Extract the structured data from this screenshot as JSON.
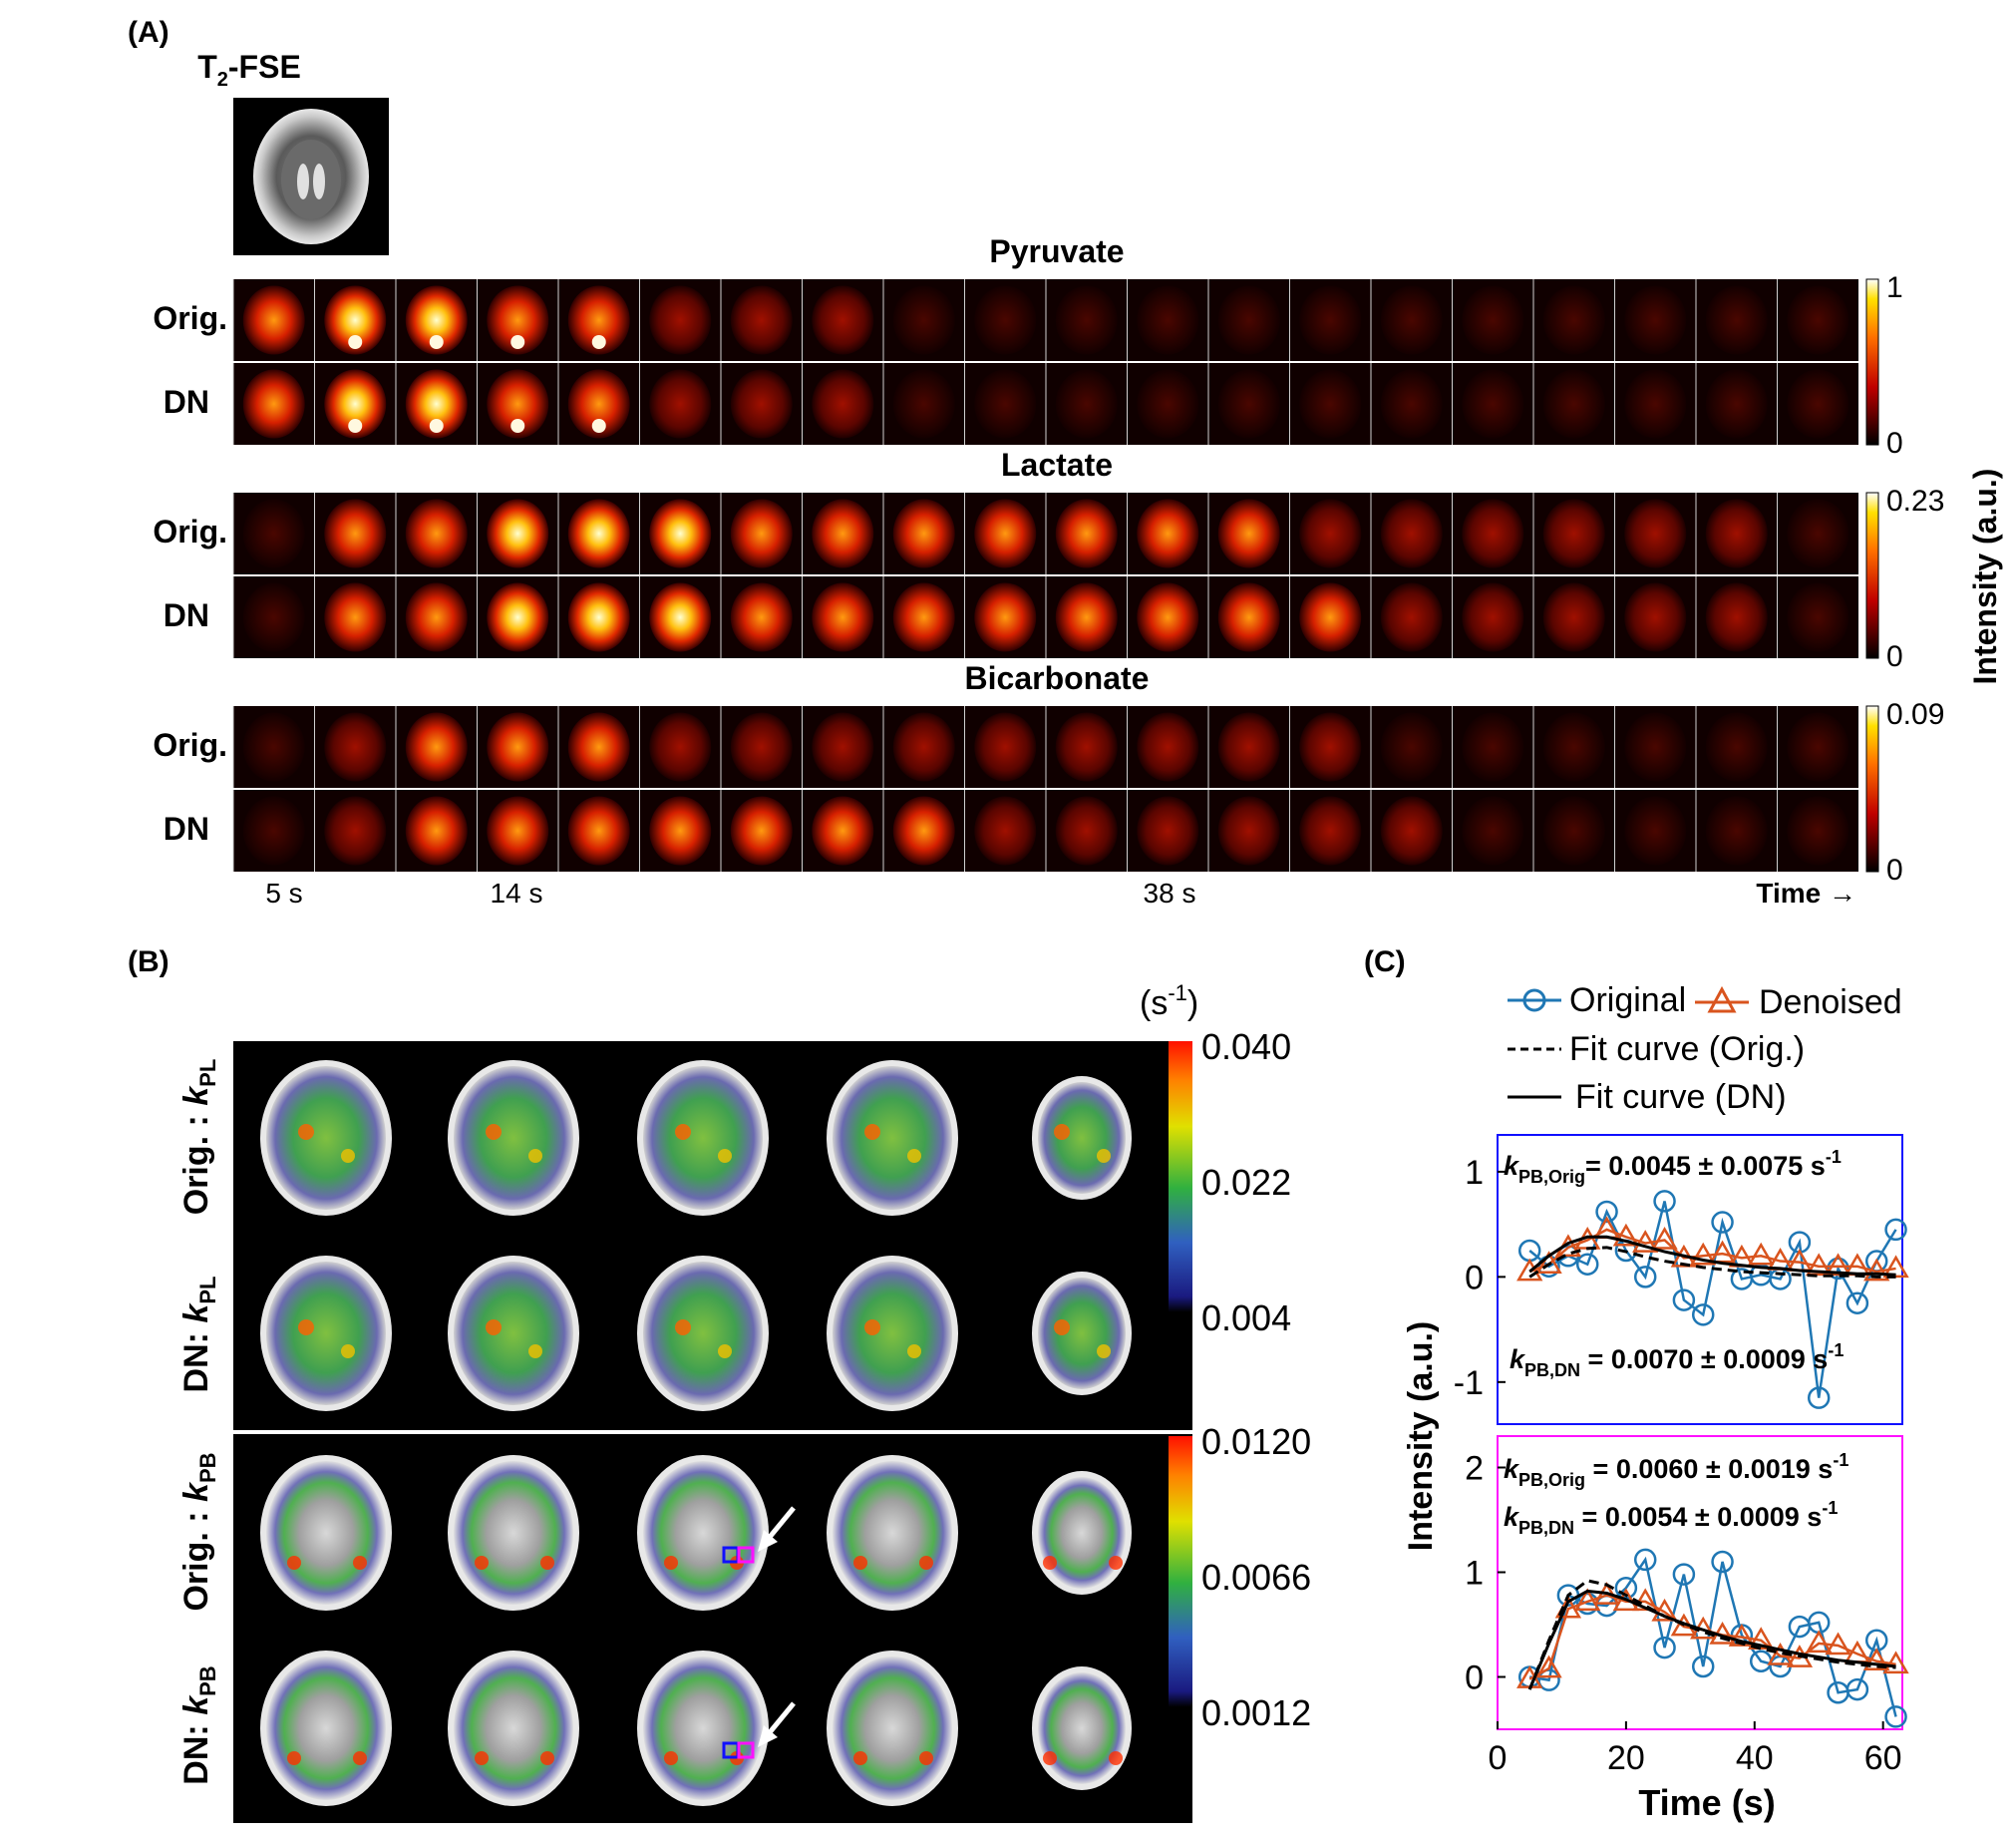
{
  "panel_a": {
    "label": "(A)",
    "t2_label": {
      "main": "T",
      "sub": "2",
      "rest": "-FSE"
    },
    "row_orig": "Orig.",
    "row_dn": "DN",
    "frames": 20,
    "groups": [
      {
        "title": "Pyruvate",
        "cb_max": "1",
        "cb_min": "0"
      },
      {
        "title": "Lactate",
        "cb_max": "0.23",
        "cb_min": "0"
      },
      {
        "title": "Bicarbonate",
        "cb_max": "0.09",
        "cb_min": "0"
      }
    ],
    "time_labels": [
      "5 s",
      "14 s",
      "38 s"
    ],
    "time_axis": "Time →",
    "intensity_label": "Intensity (a.u.)"
  },
  "panel_b": {
    "label": "(B)",
    "unit": {
      "base": "(s",
      "sup": "-1",
      "close": ")"
    },
    "rows": [
      {
        "prefix": "Orig. : ",
        "k": "k",
        "sub": "PL"
      },
      {
        "prefix": "DN: ",
        "k": "k",
        "sub": "PL"
      },
      {
        "prefix": "Orig. : ",
        "k": "k",
        "sub": "PB"
      },
      {
        "prefix": "DN: ",
        "k": "k",
        "sub": "PB"
      }
    ],
    "cb_kpl": [
      "0.040",
      "0.022",
      "0.004"
    ],
    "cb_kpb": [
      "0.0120",
      "0.0066",
      "0.0012"
    ]
  },
  "panel_c": {
    "label": "(C)",
    "legend": {
      "original": "Original",
      "denoised": "Denoised",
      "fit_orig": "Fit curve (Orig.)",
      "fit_dn": "Fit curve (DN)"
    },
    "ylabel": "Intensity (a.u.)",
    "xlabel": "Time (s)",
    "top_annot": [
      {
        "k": "k",
        "sub": "PB,Orig",
        "text": "= 0.0045 ± 0.0075 s",
        "sup": "-1"
      },
      {
        "k": "k",
        "sub": "PB,DN",
        "text": " = 0.0070 ± 0.0009 s",
        "sup": "-1"
      }
    ],
    "bottom_annot": [
      {
        "k": "k",
        "sub": "PB,Orig",
        "text": " = 0.0060 ± 0.0019 s",
        "sup": "-1"
      },
      {
        "k": "k",
        "sub": "PB,DN",
        "text": " = 0.0054 ± 0.0009 s",
        "sup": "-1"
      }
    ]
  },
  "chart_data": [
    {
      "type": "line",
      "panel": "C-top",
      "xlim": [
        0,
        63
      ],
      "ylim": [
        -1.4,
        1.35
      ],
      "yticks": [
        -1,
        0,
        1
      ],
      "x": [
        5,
        8,
        11,
        14,
        17,
        20,
        23,
        26,
        29,
        32,
        35,
        38,
        41,
        44,
        47,
        50,
        53,
        56,
        59,
        62
      ],
      "series": [
        {
          "name": "Original",
          "color": "#1f77b4",
          "marker": "circle",
          "values": [
            0.25,
            0.1,
            0.2,
            0.12,
            0.62,
            0.25,
            0.0,
            0.72,
            -0.22,
            -0.36,
            0.52,
            -0.02,
            0.02,
            -0.02,
            0.33,
            -1.15,
            0.08,
            -0.25,
            0.15,
            0.45
          ]
        },
        {
          "name": "Denoised",
          "color": "#d9541e",
          "marker": "triangle",
          "values": [
            0.05,
            0.12,
            0.28,
            0.35,
            0.45,
            0.38,
            0.32,
            0.35,
            0.18,
            0.2,
            0.22,
            0.18,
            0.2,
            0.15,
            0.14,
            0.1,
            0.1,
            0.1,
            0.05,
            0.08
          ]
        },
        {
          "name": "Fit curve (Orig.)",
          "color": "#000000",
          "dash": true,
          "values": [
            0.0,
            0.12,
            0.22,
            0.27,
            0.28,
            0.24,
            0.19,
            0.15,
            0.12,
            0.09,
            0.07,
            0.05,
            0.04,
            0.03,
            0.02,
            0.01,
            0.01,
            0.01,
            0.0,
            0.0
          ]
        },
        {
          "name": "Fit curve (DN)",
          "color": "#000000",
          "dash": false,
          "values": [
            0.05,
            0.2,
            0.32,
            0.38,
            0.38,
            0.34,
            0.29,
            0.24,
            0.2,
            0.16,
            0.13,
            0.11,
            0.09,
            0.08,
            0.06,
            0.05,
            0.04,
            0.03,
            0.03,
            0.02
          ]
        }
      ]
    },
    {
      "type": "line",
      "panel": "C-bottom",
      "xlim": [
        0,
        63
      ],
      "ylim": [
        -0.5,
        2.3
      ],
      "yticks": [
        0,
        1,
        2
      ],
      "xticks": [
        0,
        20,
        40,
        60
      ],
      "x": [
        5,
        8,
        11,
        14,
        17,
        20,
        23,
        26,
        29,
        32,
        35,
        38,
        41,
        44,
        47,
        50,
        53,
        56,
        59,
        62
      ],
      "series": [
        {
          "name": "Original",
          "color": "#1f77b4",
          "marker": "circle",
          "values": [
            0.0,
            -0.03,
            0.78,
            0.7,
            0.68,
            0.85,
            1.12,
            0.28,
            0.98,
            0.1,
            1.1,
            0.4,
            0.15,
            0.1,
            0.48,
            0.52,
            -0.15,
            -0.12,
            0.35,
            -0.38
          ]
        },
        {
          "name": "Denoised",
          "color": "#d9541e",
          "marker": "triangle",
          "values": [
            -0.02,
            0.08,
            0.65,
            0.72,
            0.78,
            0.72,
            0.72,
            0.62,
            0.48,
            0.45,
            0.4,
            0.38,
            0.35,
            0.2,
            0.18,
            0.32,
            0.3,
            0.22,
            0.15,
            0.12
          ]
        },
        {
          "name": "Fit curve (Orig.)",
          "color": "#000000",
          "dash": true,
          "values": [
            -0.12,
            0.35,
            0.78,
            0.92,
            0.88,
            0.78,
            0.68,
            0.58,
            0.5,
            0.43,
            0.37,
            0.32,
            0.27,
            0.23,
            0.2,
            0.17,
            0.14,
            0.12,
            0.1,
            0.09
          ]
        },
        {
          "name": "Fit curve (DN)",
          "color": "#000000",
          "dash": false,
          "values": [
            -0.12,
            0.32,
            0.72,
            0.82,
            0.8,
            0.74,
            0.66,
            0.58,
            0.51,
            0.45,
            0.39,
            0.34,
            0.3,
            0.26,
            0.22,
            0.19,
            0.16,
            0.14,
            0.12,
            0.1
          ]
        }
      ]
    }
  ]
}
